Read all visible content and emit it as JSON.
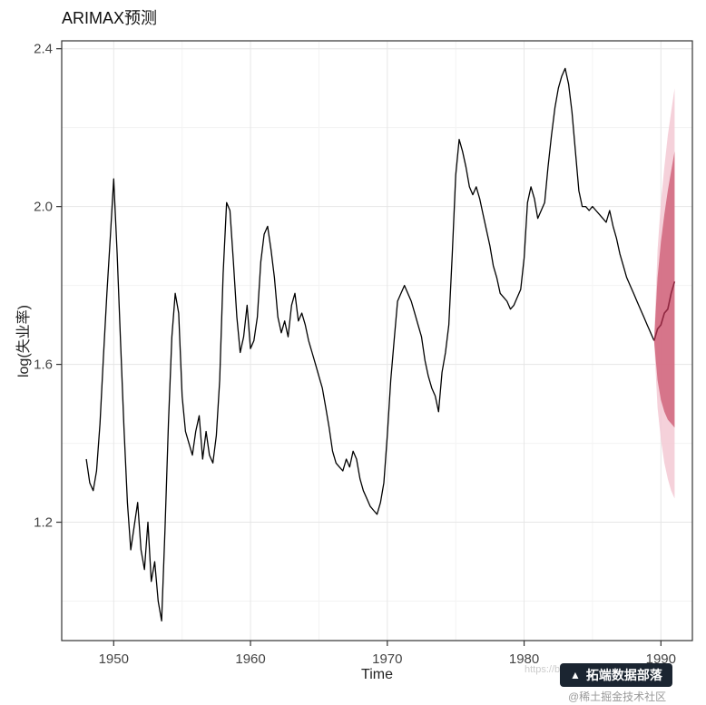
{
  "page": {
    "title": "ARIMAX预测",
    "background": "#ffffff"
  },
  "watermark": {
    "url_text": "https://blog.csdn.net",
    "badge_text": "拓端数据部落",
    "badge_handle": "@稀土掘金技术社区",
    "badge_bg": "#1b2531",
    "logo_glyph": "▲"
  },
  "chart_data": {
    "type": "line",
    "title": "ARIMAX预测",
    "xlabel": "Time",
    "ylabel": "log(失业率)",
    "xlim": [
      1946.2,
      1992.3
    ],
    "ylim": [
      0.9,
      2.42
    ],
    "x_ticks": [
      1950,
      1960,
      1970,
      1980,
      1990
    ],
    "y_ticks": [
      1.2,
      1.6,
      2.0,
      2.4
    ],
    "grid": true,
    "legend": "none",
    "colors": {
      "series": "#000000",
      "forecast_line": "#8f2740",
      "band80": "#d2687e",
      "band95": "#f3c9d4",
      "grid_major": "#e6e6e6",
      "grid_minor": "#f3f3f3",
      "panel_border": "#333333",
      "tick_label": "#444444"
    },
    "historical": {
      "name": "log(失业率)",
      "start": 1948,
      "step": 0.25,
      "values": [
        1.36,
        1.3,
        1.28,
        1.33,
        1.45,
        1.62,
        1.78,
        1.92,
        2.07,
        1.88,
        1.66,
        1.44,
        1.25,
        1.13,
        1.19,
        1.25,
        1.13,
        1.08,
        1.2,
        1.05,
        1.1,
        1.0,
        0.95,
        1.18,
        1.45,
        1.67,
        1.78,
        1.73,
        1.52,
        1.43,
        1.4,
        1.37,
        1.43,
        1.47,
        1.36,
        1.43,
        1.37,
        1.35,
        1.42,
        1.56,
        1.83,
        2.01,
        1.99,
        1.86,
        1.72,
        1.63,
        1.67,
        1.75,
        1.64,
        1.66,
        1.72,
        1.86,
        1.93,
        1.95,
        1.89,
        1.82,
        1.72,
        1.68,
        1.71,
        1.67,
        1.75,
        1.78,
        1.71,
        1.73,
        1.7,
        1.66,
        1.63,
        1.6,
        1.57,
        1.54,
        1.49,
        1.44,
        1.38,
        1.35,
        1.34,
        1.33,
        1.36,
        1.34,
        1.38,
        1.36,
        1.31,
        1.28,
        1.26,
        1.24,
        1.23,
        1.22,
        1.25,
        1.3,
        1.42,
        1.56,
        1.66,
        1.76,
        1.78,
        1.8,
        1.78,
        1.76,
        1.73,
        1.7,
        1.67,
        1.61,
        1.57,
        1.54,
        1.52,
        1.48,
        1.58,
        1.63,
        1.7,
        1.88,
        2.08,
        2.17,
        2.14,
        2.1,
        2.05,
        2.03,
        2.05,
        2.02,
        1.98,
        1.94,
        1.9,
        1.85,
        1.82,
        1.78,
        1.77,
        1.76,
        1.74,
        1.75,
        1.77,
        1.79,
        1.87,
        2.01,
        2.05,
        2.02,
        1.97,
        1.99,
        2.01,
        2.1,
        2.18,
        2.25,
        2.3,
        2.33,
        2.35,
        2.31,
        2.24,
        2.14,
        2.04,
        2.0,
        2.0,
        1.99,
        2.0,
        1.99,
        1.98,
        1.97,
        1.96,
        1.99,
        1.95,
        1.92,
        1.88,
        1.85,
        1.82,
        1.8,
        1.78,
        1.76,
        1.74,
        1.72,
        1.7,
        1.68,
        1.66
      ]
    },
    "forecast": {
      "start": 1989.5,
      "step": 0.25,
      "mean": [
        1.66,
        1.69,
        1.7,
        1.73,
        1.74,
        1.78,
        1.81
      ],
      "lo80": [
        1.66,
        1.56,
        1.51,
        1.48,
        1.46,
        1.45,
        1.44
      ],
      "hi80": [
        1.66,
        1.82,
        1.91,
        1.98,
        2.04,
        2.09,
        2.14
      ],
      "lo95": [
        1.66,
        1.49,
        1.41,
        1.35,
        1.31,
        1.28,
        1.26
      ],
      "hi95": [
        1.66,
        1.89,
        2.01,
        2.1,
        2.18,
        2.24,
        2.3
      ]
    }
  }
}
